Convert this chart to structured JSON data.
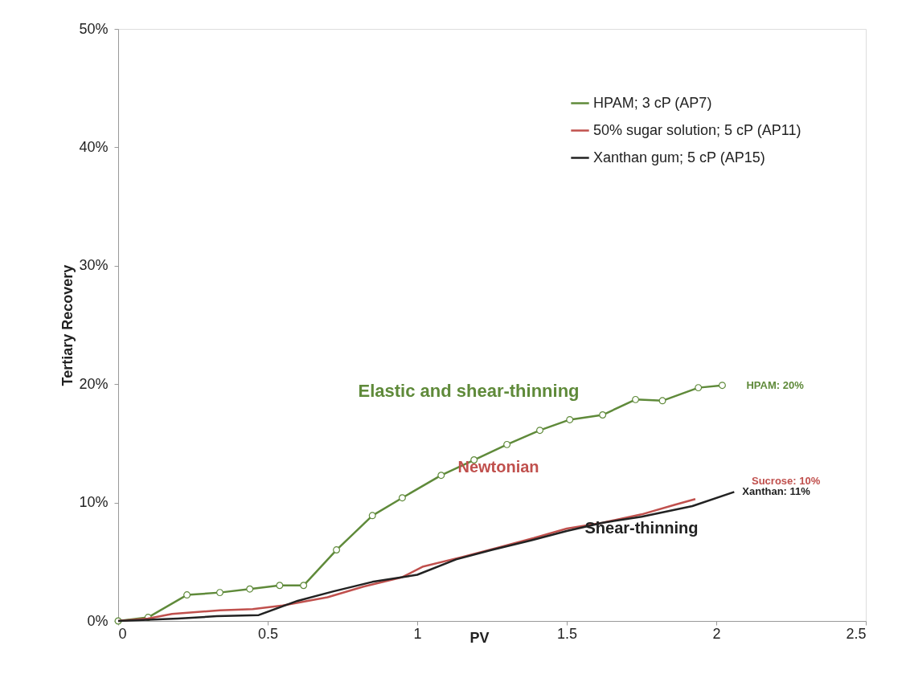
{
  "chart_data": {
    "type": "line",
    "xlabel": "PV",
    "ylabel": "Tertiary Recovery",
    "xlim": [
      0,
      2.5
    ],
    "xticks": [
      0,
      0.5,
      1,
      1.5,
      2,
      2.5
    ],
    "ylim": [
      0,
      50
    ],
    "yticks": [
      {
        "value": 0,
        "label": "0%"
      },
      {
        "value": 10,
        "label": "10%"
      },
      {
        "value": 20,
        "label": "20%"
      },
      {
        "value": 30,
        "label": "30%"
      },
      {
        "value": 40,
        "label": "40%"
      },
      {
        "value": 50,
        "label": "50%"
      }
    ],
    "grid": false,
    "legend": "top right",
    "line_style": "solid",
    "series": [
      {
        "name": "HPAM; 3 cP (AP7)",
        "color": "#5f8a3a",
        "marker": "circle",
        "x": [
          0,
          0.1,
          0.23,
          0.34,
          0.44,
          0.54,
          0.62,
          0.73,
          0.85,
          0.95,
          1.08,
          1.19,
          1.3,
          1.41,
          1.51,
          1.62,
          1.73,
          1.82,
          1.94,
          2.02
        ],
        "values": [
          0,
          0.3,
          2.2,
          2.4,
          2.7,
          3.0,
          3.0,
          6.0,
          8.9,
          10.4,
          12.3,
          13.6,
          14.9,
          16.1,
          17.0,
          17.4,
          18.7,
          18.6,
          19.7,
          19.9
        ]
      },
      {
        "name": "50% sugar solution; 5 cP (AP11)",
        "color": "#c0504d",
        "x": [
          0,
          0.1,
          0.18,
          0.34,
          0.45,
          0.55,
          0.7,
          0.82,
          0.95,
          1.02,
          1.15,
          1.27,
          1.39,
          1.5,
          1.62,
          1.75,
          1.86,
          1.93
        ],
        "values": [
          0,
          0.2,
          0.6,
          0.9,
          1.0,
          1.3,
          2.0,
          2.9,
          3.7,
          4.6,
          5.4,
          6.2,
          7.0,
          7.8,
          8.3,
          9.0,
          9.8,
          10.3
        ]
      },
      {
        "name": "Xanthan gum; 5 cP (AP15)",
        "color": "#222222",
        "x": [
          0,
          0.1,
          0.2,
          0.33,
          0.47,
          0.6,
          0.72,
          0.85,
          1.0,
          1.13,
          1.25,
          1.38,
          1.5,
          1.62,
          1.75,
          1.92,
          2.06
        ],
        "values": [
          0,
          0.1,
          0.2,
          0.4,
          0.5,
          1.7,
          2.5,
          3.3,
          3.9,
          5.2,
          6.0,
          6.8,
          7.6,
          8.3,
          8.8,
          9.7,
          10.9
        ]
      }
    ],
    "annotations": [
      "Elastic and shear-thinning",
      "Newtonian",
      "Shear-thinning",
      {
        "text": "HPAM: 20%",
        "x": 2.02,
        "y": 19.9
      },
      "Sucrose: 10%",
      {
        "text": "Xanthan: 11%",
        "x": 2.06,
        "y": 10.9
      }
    ]
  }
}
